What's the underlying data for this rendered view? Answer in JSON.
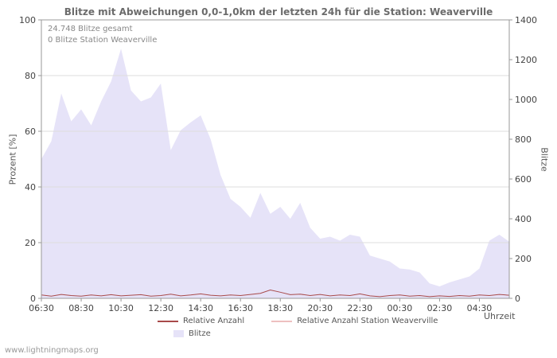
{
  "page": {
    "watermark": "www.lightningmaps.org"
  },
  "chart": {
    "title": "Blitze mit Abweichungen 0,0-1,0km der letzten 24h für die Station: Weaverville",
    "annotations": {
      "total": "24.748 Blitze gesamt",
      "station": "0 Blitze Station Weaverville"
    },
    "xlabel": "Uhrzeit",
    "ylabel_left": "Prozent  [%]",
    "ylabel_right": "Blitze",
    "legend": {
      "rel": "Relative Anzahl",
      "rel_station": "Relative Anzahl Station Weaverville",
      "blitze": "Blitze"
    },
    "colors": {
      "area": "#e6e3f8",
      "line_rel": "#a84a4a",
      "line_rel_station": "#eec0c0",
      "axis": "#999999",
      "grid": "#dddddd"
    }
  },
  "chart_data": {
    "type": "area",
    "title": "Blitze mit Abweichungen 0,0-1,0km der letzten 24h für die Station: Weaverville",
    "xlabel": "Uhrzeit",
    "x": [
      "06:30",
      "07:00",
      "07:30",
      "08:00",
      "08:30",
      "09:00",
      "09:30",
      "10:00",
      "10:30",
      "11:00",
      "11:30",
      "12:00",
      "12:30",
      "13:00",
      "13:30",
      "14:00",
      "14:30",
      "15:00",
      "15:30",
      "16:00",
      "16:30",
      "17:00",
      "17:30",
      "18:00",
      "18:30",
      "19:00",
      "19:30",
      "20:00",
      "20:30",
      "21:00",
      "21:30",
      "22:00",
      "22:30",
      "23:00",
      "23:30",
      "00:00",
      "00:30",
      "01:00",
      "01:30",
      "02:00",
      "02:30",
      "03:00",
      "03:30",
      "04:00",
      "04:30",
      "05:00",
      "05:30",
      "06:00"
    ],
    "x_ticks": [
      "06:30",
      "08:30",
      "10:30",
      "12:30",
      "14:30",
      "16:30",
      "18:30",
      "20:30",
      "22:30",
      "00:30",
      "02:30",
      "04:30"
    ],
    "left_axis": {
      "label": "Prozent  [%]",
      "min": 0,
      "max": 100,
      "ticks": [
        0,
        20,
        40,
        60,
        80,
        100
      ]
    },
    "right_axis": {
      "label": "Blitze",
      "min": 0,
      "max": 1400,
      "ticks": [
        0,
        200,
        400,
        600,
        800,
        1000,
        1200,
        1400
      ]
    },
    "series": [
      {
        "name": "Blitze",
        "type": "area",
        "axis": "right",
        "color": "#e6e3f8",
        "values": [
          700,
          790,
          1030,
          890,
          950,
          870,
          990,
          1090,
          1255,
          1045,
          990,
          1010,
          1080,
          745,
          845,
          885,
          920,
          800,
          620,
          500,
          460,
          405,
          530,
          425,
          460,
          400,
          480,
          355,
          300,
          310,
          290,
          320,
          310,
          215,
          200,
          185,
          150,
          145,
          130,
          75,
          60,
          80,
          95,
          110,
          150,
          290,
          320,
          285
        ]
      },
      {
        "name": "Relative Anzahl",
        "type": "line",
        "axis": "left",
        "color": "#a84a4a",
        "values": [
          1.2,
          0.8,
          1.4,
          1.0,
          0.8,
          1.2,
          0.9,
          1.3,
          0.9,
          1.1,
          1.3,
          0.8,
          1.0,
          1.5,
          0.9,
          1.2,
          1.6,
          1.1,
          0.9,
          1.2,
          1.0,
          1.4,
          1.8,
          3.0,
          2.2,
          1.3,
          1.5,
          1.0,
          1.4,
          0.9,
          1.2,
          1.0,
          1.6,
          0.9,
          0.6,
          1.0,
          1.2,
          0.8,
          1.0,
          0.6,
          0.9,
          0.7,
          1.0,
          0.8,
          1.2,
          1.0,
          1.4,
          1.1
        ]
      },
      {
        "name": "Relative Anzahl Station Weaverville",
        "type": "line",
        "axis": "left",
        "color": "#eec0c0",
        "values": [
          0,
          0,
          0,
          0,
          0,
          0,
          0,
          0,
          0,
          0,
          0,
          0,
          0,
          0,
          0,
          0,
          0,
          0,
          0,
          0,
          0,
          0,
          0,
          0,
          0,
          0,
          0,
          0,
          0,
          0,
          0,
          0,
          0,
          0,
          0,
          0,
          0,
          0,
          0,
          0,
          0,
          0,
          0,
          0,
          0,
          0,
          0,
          0
        ]
      }
    ]
  }
}
